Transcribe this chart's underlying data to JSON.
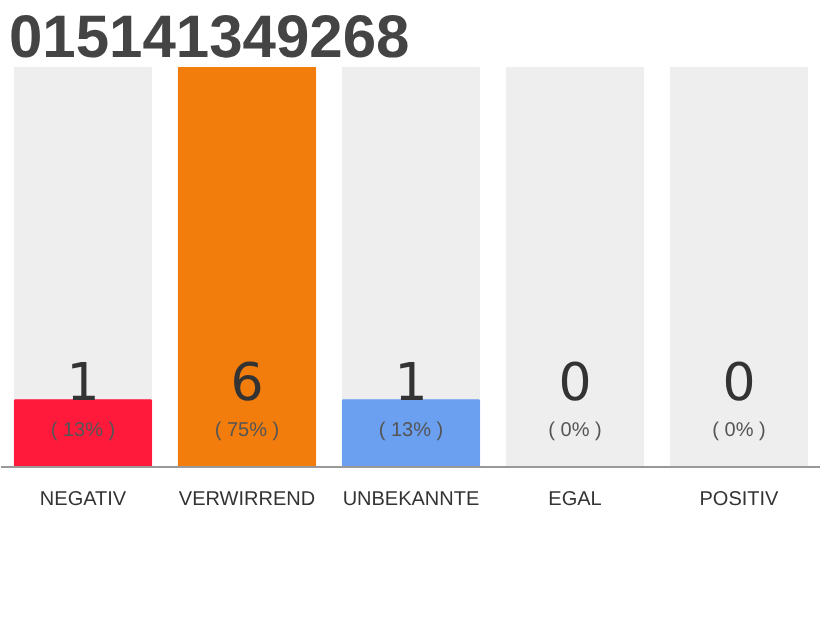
{
  "chart_data": {
    "type": "bar",
    "title": "015141349268",
    "categories": [
      "NEGATIV",
      "VERWIRREND",
      "UNBEKANNTE",
      "EGAL",
      "POSITIV"
    ],
    "values": [
      1,
      6,
      1,
      0,
      0
    ],
    "colors": [
      "#ff1a3c",
      "#f27c0c",
      "#6b9ff0",
      "#cccccc",
      "#cccccc"
    ],
    "tick_labels": "x",
    "value_labels": [
      "1",
      "6",
      "1",
      "0",
      "0"
    ],
    "annotations": [
      "( 13% )",
      "( 75% )",
      "( 13% )",
      "( 0% )",
      "( 0% )"
    ]
  }
}
